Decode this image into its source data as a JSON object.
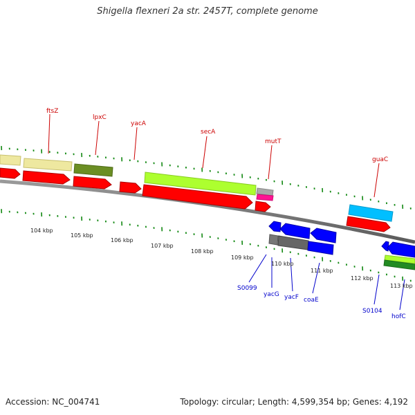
{
  "title": "Shigella flexneri 2a str. 2457T, complete genome",
  "footer": {
    "accession_label": "Accession: NC_004741",
    "topology_label": "Topology: circular; Length: 4,599,354 bp; Genes: 4,192"
  },
  "kbp_labels": [
    "104 kbp",
    "105 kbp",
    "106 kbp",
    "107 kbp",
    "108 kbp",
    "109 kbp",
    "110 kbp",
    "111 kbp",
    "112 kbp",
    "113 kbp"
  ],
  "forward_gene_labels": [
    "ftsZ",
    "lpxC",
    "yacA",
    "secA",
    "mutT",
    "guaC"
  ],
  "reverse_gene_labels": [
    "S0099",
    "yacG",
    "yacF",
    "coaE",
    "S0104",
    "hofC"
  ],
  "colors": {
    "forward_label": "#cc0000",
    "reverse_label": "#0000cc",
    "tick": "#118811",
    "backbone": "#777777"
  }
}
